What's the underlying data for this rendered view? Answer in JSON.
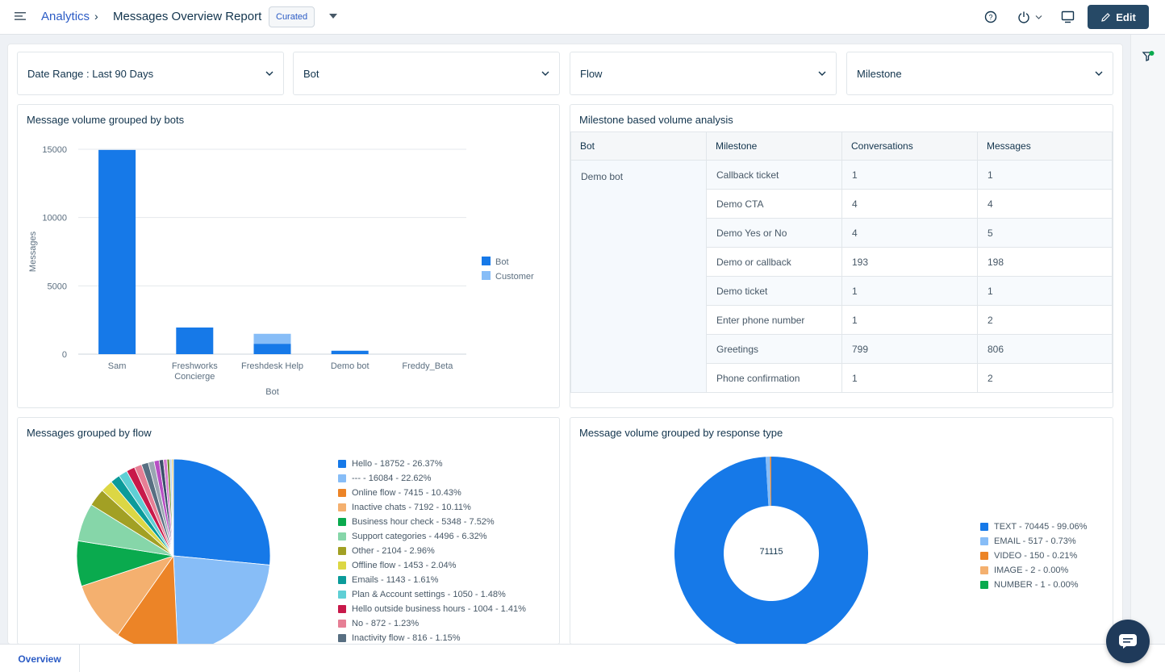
{
  "header": {
    "breadcrumb_root": "Analytics",
    "breadcrumb_sep": "›",
    "title": "Messages Overview Report",
    "badge": "Curated",
    "edit_label": "Edit"
  },
  "filters": [
    {
      "label": "Date Range :  Last 90 Days"
    },
    {
      "label": "Bot"
    },
    {
      "label": "Flow"
    },
    {
      "label": "Milestone"
    }
  ],
  "bar_card": {
    "title": "Message volume grouped by bots"
  },
  "table_card": {
    "title": "Milestone based volume analysis",
    "columns": [
      "Bot",
      "Milestone",
      "Conversations",
      "Messages"
    ],
    "bot": "Demo bot",
    "rows": [
      {
        "milestone": "Callback ticket",
        "conversations": "1",
        "messages": "1"
      },
      {
        "milestone": "Demo CTA",
        "conversations": "4",
        "messages": "4"
      },
      {
        "milestone": "Demo Yes or No",
        "conversations": "4",
        "messages": "5"
      },
      {
        "milestone": "Demo or callback",
        "conversations": "193",
        "messages": "198"
      },
      {
        "milestone": "Demo ticket",
        "conversations": "1",
        "messages": "1"
      },
      {
        "milestone": "Enter phone number",
        "conversations": "1",
        "messages": "2"
      },
      {
        "milestone": "Greetings",
        "conversations": "799",
        "messages": "806"
      },
      {
        "milestone": "Phone confirmation",
        "conversations": "1",
        "messages": "2"
      }
    ]
  },
  "flow_card": {
    "title": "Messages grouped by flow"
  },
  "response_card": {
    "title": "Message volume grouped by response type",
    "center_total": "71115"
  },
  "tabs": {
    "overview": "Overview"
  },
  "colors": {
    "primary": "#1679e8",
    "light": "#87bdf7",
    "dark_button": "#264966",
    "link": "#2c5cc5"
  },
  "chart_data": [
    {
      "type": "bar",
      "title": "Message volume grouped by bots",
      "xlabel": "Bot",
      "ylabel": "Messages",
      "categories": [
        "Sam",
        "Freshworks Concierge",
        "Freshdesk Help",
        "Demo bot",
        "Freddy_Beta"
      ],
      "category_lines": [
        [
          "Sam"
        ],
        [
          "Freshworks",
          "Concierge"
        ],
        [
          "Freshdesk Help"
        ],
        [
          "Demo bot"
        ],
        [
          "Freddy_Beta"
        ]
      ],
      "yticks": [
        0,
        5000,
        10000,
        15000
      ],
      "ylim": [
        0,
        15000
      ],
      "stacked": true,
      "series": [
        {
          "name": "Bot",
          "color": "#1679e8",
          "values": [
            14950,
            1950,
            760,
            250,
            0
          ]
        },
        {
          "name": "Customer",
          "color": "#87bdf7",
          "values": [
            0,
            0,
            730,
            0,
            0
          ]
        }
      ]
    },
    {
      "type": "pie",
      "title": "Messages grouped by flow",
      "slices": [
        {
          "label": "Hello",
          "value": 18752,
          "pct": "26.37%",
          "color": "#1679e8"
        },
        {
          "label": "---",
          "value": 16084,
          "pct": "22.62%",
          "color": "#87bdf7"
        },
        {
          "label": "Online flow",
          "value": 7415,
          "pct": "10.43%",
          "color": "#ec8427"
        },
        {
          "label": "Inactive chats",
          "value": 7192,
          "pct": "10.11%",
          "color": "#f4b06f"
        },
        {
          "label": "Business hour check",
          "value": 5348,
          "pct": "7.52%",
          "color": "#0aaa4e"
        },
        {
          "label": "Support categories",
          "value": 4496,
          "pct": "6.32%",
          "color": "#86d6a9"
        },
        {
          "label": "Other",
          "value": 2104,
          "pct": "2.96%",
          "color": "#a2a024"
        },
        {
          "label": "Offline flow",
          "value": 1453,
          "pct": "2.04%",
          "color": "#dcd744"
        },
        {
          "label": "Emails",
          "value": 1143,
          "pct": "1.61%",
          "color": "#0b9b9a"
        },
        {
          "label": "Plan & Account settings",
          "value": 1050,
          "pct": "1.48%",
          "color": "#5fcfd5"
        },
        {
          "label": "Hello outside business hours",
          "value": 1004,
          "pct": "1.41%",
          "color": "#c8194a"
        },
        {
          "label": "No",
          "value": 872,
          "pct": "1.23%",
          "color": "#e67f95"
        },
        {
          "label": "Inactivity flow",
          "value": 816,
          "pct": "1.15%",
          "color": "#586f82"
        }
      ],
      "rest": [
        {
          "value": 700,
          "color": "#9aa6b2"
        },
        {
          "value": 600,
          "color": "#b74fc4"
        },
        {
          "value": 500,
          "color": "#3b4e6b"
        },
        {
          "value": 420,
          "color": "#d37cd1"
        },
        {
          "value": 300,
          "color": "#6c8f2e"
        },
        {
          "value": 260,
          "color": "#bbd4ef"
        },
        {
          "value": 200,
          "color": "#e8c66a"
        }
      ]
    },
    {
      "type": "pie",
      "donut": true,
      "title": "Message volume grouped by response type",
      "total": 71115,
      "slices": [
        {
          "label": "TEXT",
          "value": 70445,
          "pct": "99.06%",
          "color": "#1679e8"
        },
        {
          "label": "EMAIL",
          "value": 517,
          "pct": "0.73%",
          "color": "#87bdf7"
        },
        {
          "label": "VIDEO",
          "value": 150,
          "pct": "0.21%",
          "color": "#ec8427"
        },
        {
          "label": "IMAGE",
          "value": 2,
          "pct": "0.00%",
          "color": "#f4b06f"
        },
        {
          "label": "NUMBER",
          "value": 1,
          "pct": "0.00%",
          "color": "#0aaa4e"
        }
      ]
    }
  ]
}
